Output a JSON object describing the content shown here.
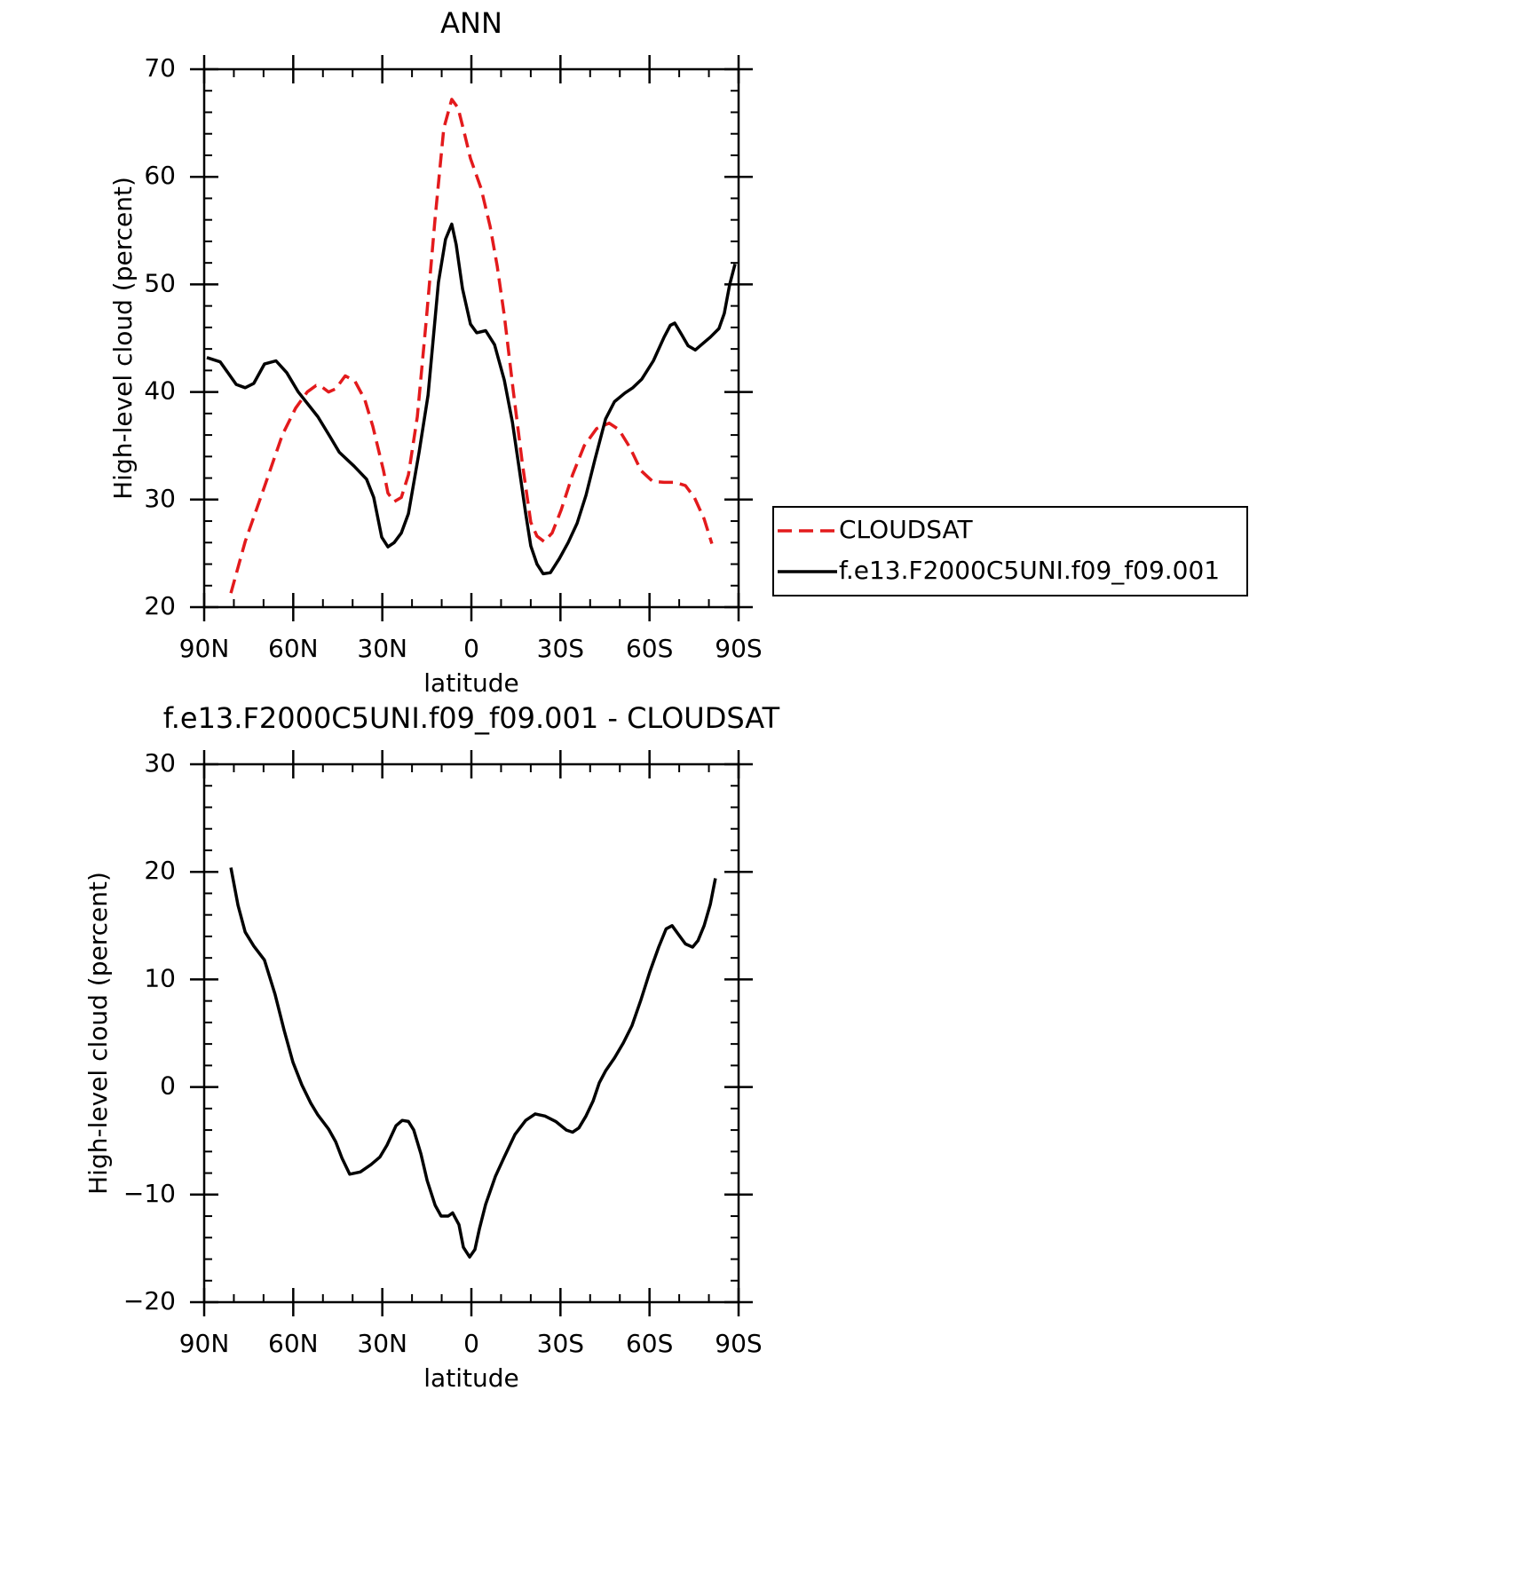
{
  "chart_data": [
    {
      "type": "line",
      "title": "ANN",
      "xlabel": "latitude",
      "ylabel": "High-level cloud (percent)",
      "xlim": [
        90,
        -90
      ],
      "xticks": [
        {
          "value": 90,
          "label": "90N"
        },
        {
          "value": 60,
          "label": "60N"
        },
        {
          "value": 30,
          "label": "30N"
        },
        0,
        {
          "value": -30,
          "label": "30S"
        },
        {
          "value": -60,
          "label": "60S"
        },
        {
          "value": -90,
          "label": "90S"
        }
      ],
      "ylim": [
        20,
        70
      ],
      "yticks": [
        20,
        30,
        40,
        50,
        60,
        70
      ],
      "legend": "right",
      "series": [
        {
          "name": "CLOUDSAT",
          "color": "#e31a1c",
          "dashed": true,
          "x": [
            81.0,
            76.2,
            69.7,
            63.7,
            59.2,
            55.3,
            52.3,
            50.5,
            48.1,
            45.7,
            42.5,
            39.2,
            35.9,
            33.2,
            29.6,
            28.1,
            26.0,
            23.6,
            21.2,
            18.2,
            15.2,
            12.2,
            9.3,
            6.6,
            4.5,
            2.4,
            0.3,
            -3.3,
            -6.3,
            -8.7,
            -11.1,
            -14.1,
            -17.1,
            -20.0,
            -22.1,
            -24.5,
            -27.2,
            -30.2,
            -34.1,
            -38.0,
            -42.2,
            -46.4,
            -49.7,
            -53.5,
            -57.1,
            -61.0,
            -64.9,
            -68.5,
            -72.1,
            -75.1,
            -78.4,
            -81.0
          ],
          "values": [
            21.3,
            26.1,
            31.2,
            36.0,
            38.5,
            40.0,
            40.6,
            40.5,
            40.0,
            40.3,
            41.5,
            41.0,
            39.3,
            36.8,
            32.7,
            30.6,
            29.8,
            30.2,
            32.3,
            37.7,
            46.7,
            56.2,
            64.5,
            67.2,
            66.4,
            64.1,
            61.7,
            58.9,
            55.4,
            51.7,
            47.1,
            40.1,
            33.5,
            27.9,
            26.6,
            26.1,
            26.9,
            29.0,
            32.3,
            35.0,
            36.6,
            37.1,
            36.5,
            34.8,
            32.7,
            31.7,
            31.6,
            31.6,
            31.3,
            30.2,
            28.2,
            25.9
          ]
        },
        {
          "name": "f.e13.F2000C5UNI.f09_f09.001",
          "color": "#000000",
          "dashed": false,
          "x": [
            89.1,
            84.6,
            79.2,
            76.2,
            73.3,
            69.7,
            65.8,
            62.2,
            58.3,
            51.7,
            47.5,
            44.5,
            39.5,
            35.3,
            32.9,
            30.2,
            28.1,
            26.0,
            23.6,
            21.2,
            17.6,
            14.6,
            11.1,
            8.7,
            6.6,
            5.1,
            3.0,
            0.3,
            -1.8,
            -4.8,
            -7.8,
            -11.1,
            -13.8,
            -16.2,
            -18.3,
            -20.0,
            -22.1,
            -24.2,
            -26.6,
            -29.6,
            -32.6,
            -35.6,
            -38.6,
            -41.6,
            -45.2,
            -48.2,
            -51.7,
            -54.4,
            -57.4,
            -61.3,
            -64.9,
            -67.0,
            -68.5,
            -70.9,
            -73.0,
            -75.4,
            -77.5,
            -80.5,
            -83.4,
            -85.2,
            -87.0,
            -88.8
          ],
          "values": [
            43.2,
            42.8,
            40.7,
            40.4,
            40.8,
            42.6,
            42.9,
            41.8,
            40.0,
            37.7,
            35.8,
            34.4,
            33.1,
            31.9,
            30.2,
            26.5,
            25.6,
            26.0,
            26.9,
            28.7,
            34.4,
            39.7,
            50.2,
            54.2,
            55.6,
            53.7,
            49.6,
            46.3,
            45.5,
            45.7,
            44.4,
            41.1,
            37.2,
            32.7,
            28.7,
            25.7,
            24.0,
            23.1,
            23.2,
            24.5,
            26.0,
            27.8,
            30.4,
            33.7,
            37.5,
            39.1,
            39.9,
            40.4,
            41.2,
            42.9,
            45.1,
            46.2,
            46.4,
            45.3,
            44.3,
            43.9,
            44.4,
            45.1,
            45.9,
            47.3,
            50.0,
            51.9
          ]
        }
      ]
    },
    {
      "type": "line",
      "title": "f.e13.F2000C5UNI.f09_f09.001 - CLOUDSAT",
      "xlabel": "latitude",
      "ylabel": "High-level cloud (percent)",
      "xlim": [
        90,
        -90
      ],
      "xticks": [
        {
          "value": 90,
          "label": "90N"
        },
        {
          "value": 60,
          "label": "60N"
        },
        {
          "value": 30,
          "label": "30N"
        },
        0,
        {
          "value": -30,
          "label": "30S"
        },
        {
          "value": -60,
          "label": "60S"
        },
        {
          "value": -90,
          "label": "90S"
        }
      ],
      "ylim": [
        -20,
        30
      ],
      "yticks": [
        {
          "value": -20,
          "label": "−20"
        },
        {
          "value": -10,
          "label": "−10"
        },
        0,
        10,
        20,
        30
      ],
      "series": [
        {
          "color": "#000000",
          "dashed": false,
          "x": [
            81.0,
            78.6,
            76.2,
            73.3,
            69.7,
            66.1,
            63.1,
            60.1,
            57.1,
            54.1,
            51.7,
            48.1,
            45.7,
            43.6,
            41.0,
            37.4,
            33.8,
            30.8,
            28.4,
            25.4,
            23.3,
            21.2,
            19.4,
            17.0,
            14.9,
            12.2,
            10.2,
            7.8,
            6.3,
            4.2,
            2.7,
            0.6,
            -1.2,
            -2.7,
            -4.8,
            -8.1,
            -11.1,
            -14.7,
            -18.3,
            -21.5,
            -24.8,
            -28.4,
            -32.0,
            -34.1,
            -36.2,
            -38.6,
            -41.0,
            -43.1,
            -45.2,
            -48.2,
            -51.2,
            -54.1,
            -57.1,
            -60.1,
            -63.1,
            -65.6,
            -67.6,
            -69.7,
            -72.1,
            -74.5,
            -76.3,
            -78.4,
            -80.5,
            -82.2
          ],
          "values": [
            20.4,
            16.9,
            14.4,
            13.1,
            11.8,
            8.6,
            5.3,
            2.3,
            0.2,
            -1.5,
            -2.6,
            -3.9,
            -5.1,
            -6.6,
            -8.1,
            -7.9,
            -7.2,
            -6.5,
            -5.4,
            -3.6,
            -3.1,
            -3.2,
            -4.0,
            -6.2,
            -8.7,
            -11.0,
            -12.0,
            -12.0,
            -11.7,
            -12.8,
            -14.9,
            -15.8,
            -15.1,
            -13.2,
            -10.9,
            -8.3,
            -6.5,
            -4.4,
            -3.1,
            -2.5,
            -2.7,
            -3.2,
            -4.0,
            -4.2,
            -3.8,
            -2.7,
            -1.3,
            0.4,
            1.5,
            2.7,
            4.1,
            5.7,
            8.1,
            10.7,
            13.0,
            14.7,
            15.0,
            14.2,
            13.3,
            13.0,
            13.6,
            15.0,
            17.0,
            19.4
          ]
        }
      ]
    }
  ]
}
